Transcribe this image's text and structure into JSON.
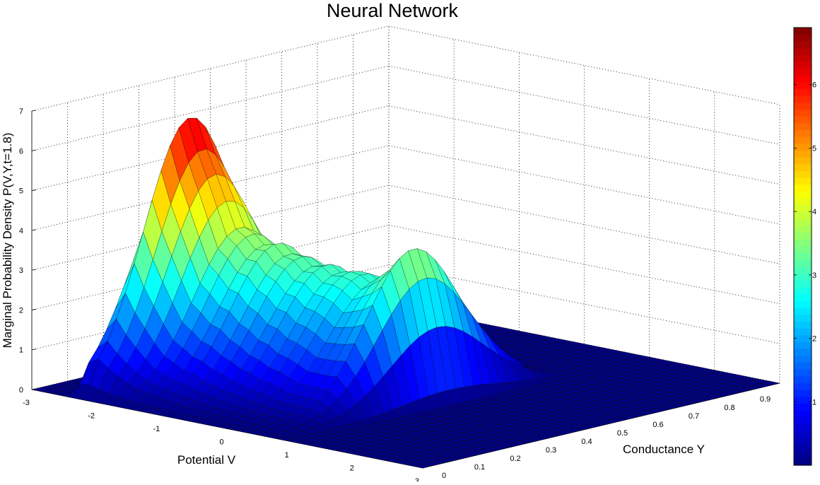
{
  "chart_data": {
    "type": "surface",
    "title": "Neural Network",
    "xlabel": "Potential V",
    "ylabel": "Conductance Y",
    "zlabel": "Marginal Probability Density P(V,Y,t=1.8)",
    "x_ticks": [
      "-3",
      "-2",
      "-1",
      "0",
      "1",
      "2",
      "3"
    ],
    "y_ticks": [
      "0",
      "0.1",
      "0.2",
      "0.3",
      "0.4",
      "0.5",
      "0.6",
      "0.7",
      "0.8",
      "0.9"
    ],
    "z_ticks": [
      "0",
      "1",
      "2",
      "3",
      "4",
      "5",
      "6",
      "7"
    ],
    "xlim": [
      -3,
      3
    ],
    "ylim": [
      0,
      1
    ],
    "zlim": [
      0,
      7
    ],
    "grid": true,
    "colormap": "jet",
    "colorbar": {
      "ticks": [
        "1",
        "2",
        "3",
        "4",
        "5",
        "6"
      ],
      "range": [
        0,
        6.9
      ],
      "placement": "right"
    },
    "peak_ridge": {
      "description_units": "V position, peak height",
      "V": [
        -2.35,
        -2.2,
        -2.05,
        -1.9,
        -1.75,
        -1.6,
        -1.45,
        -1.3,
        -1.15,
        -1.0,
        -0.85,
        -0.7,
        -0.55,
        -0.4,
        -0.25,
        -0.1,
        0.05,
        0.2,
        0.35,
        0.5,
        0.65
      ],
      "height": [
        6.9,
        6.2,
        5.4,
        4.9,
        4.2,
        3.6,
        3.7,
        3.3,
        3.6,
        3.1,
        3.3,
        2.9,
        3.2,
        2.8,
        3.1,
        2.9,
        2.8,
        3.2,
        3.4,
        3.9,
        2.6
      ]
    },
    "peak_conductance_range": [
      0.05,
      0.6
    ]
  }
}
